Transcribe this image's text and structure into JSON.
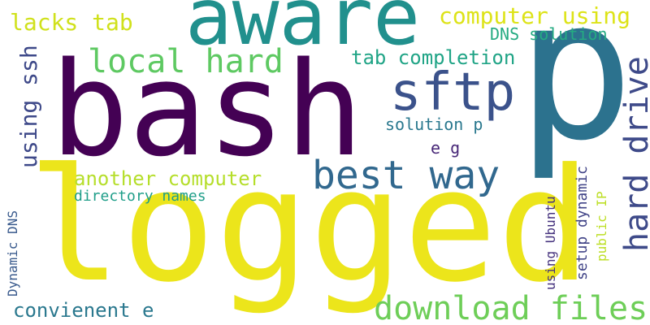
{
  "words": [
    {
      "text": "bash",
      "color": "#440154"
    },
    {
      "text": "logged",
      "color": "#ece51b"
    },
    {
      "text": "p",
      "color": "#2c728e"
    },
    {
      "text": "aware",
      "color": "#21908d"
    },
    {
      "text": "sftp",
      "color": "#3b528b"
    },
    {
      "text": "best way",
      "color": "#31688e"
    },
    {
      "text": "hard drive",
      "color": "#3e4a89"
    },
    {
      "text": "download files",
      "color": "#6ece58"
    },
    {
      "text": "local hard",
      "color": "#5ec962"
    },
    {
      "text": "computer using",
      "color": "#dde318"
    },
    {
      "text": "lacks tab",
      "color": "#d0e11c"
    },
    {
      "text": "using ssh",
      "color": "#3e4989"
    },
    {
      "text": "another computer",
      "color": "#b5de2b"
    },
    {
      "text": "tab completion",
      "color": "#20a486"
    },
    {
      "text": "convienent e",
      "color": "#2a788e"
    },
    {
      "text": "DNS solution",
      "color": "#25ab82"
    },
    {
      "text": "solution p",
      "color": "#2a788e"
    },
    {
      "text": "e g",
      "color": "#482878"
    },
    {
      "text": "directory names",
      "color": "#1f9e89"
    },
    {
      "text": "Dynamic DNS",
      "color": "#38598c"
    },
    {
      "text": "using Ubuntu",
      "color": "#46337e"
    },
    {
      "text": "setup dynamic",
      "color": "#414487"
    },
    {
      "text": "public IP",
      "color": "#bddf26"
    }
  ]
}
